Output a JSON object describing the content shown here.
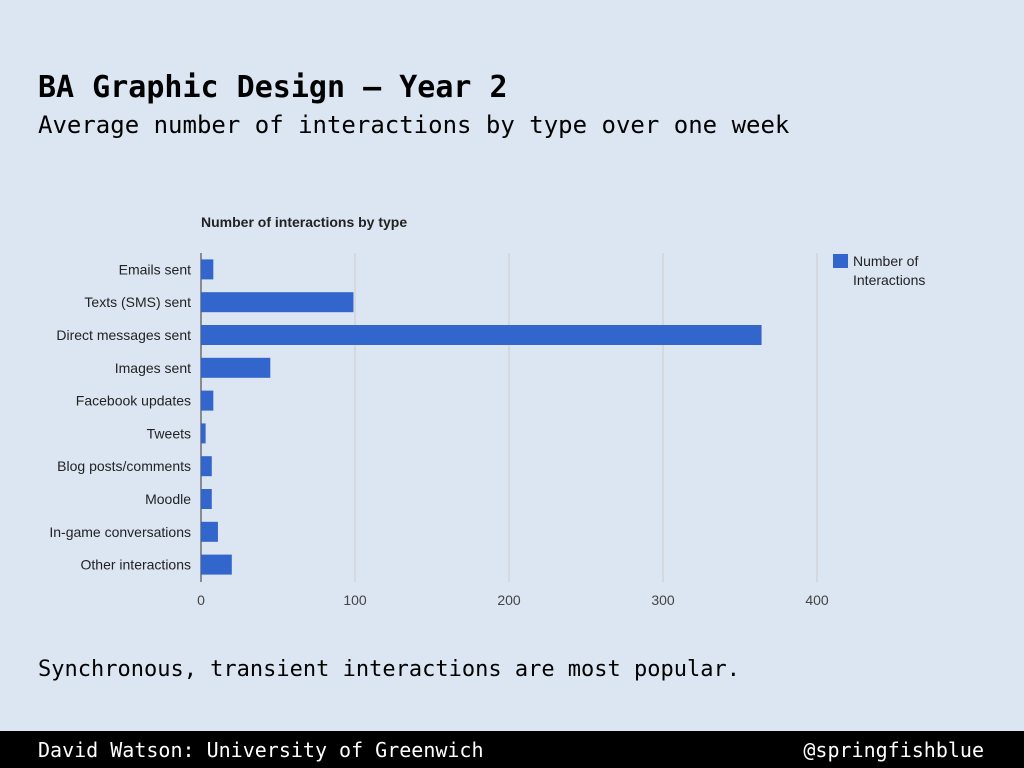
{
  "slide": {
    "title": "BA Graphic Design – Year 2",
    "subtitle": "Average number of interactions by type over one week",
    "conclusion": "Synchronous, transient interactions are most popular."
  },
  "footer": {
    "left": "David Watson: University of Greenwich",
    "right": "@springfishblue"
  },
  "colors": {
    "background": "#dce6f2",
    "bar": "#3366cc",
    "gridline": "#cccccc",
    "footer_bg": "#000000"
  },
  "chart_data": {
    "type": "bar",
    "orientation": "horizontal",
    "title": "Number of interactions by type",
    "categories": [
      "Emails sent",
      "Texts (SMS) sent",
      "Direct messages sent",
      "Images sent",
      "Facebook updates",
      "Tweets",
      "Blog posts/comments",
      "Moodle",
      "In-game conversations",
      "Other interactions"
    ],
    "series": [
      {
        "name": "Number of Interactions",
        "values": [
          8,
          99,
          364,
          45,
          8,
          3,
          7,
          7,
          11,
          20
        ]
      }
    ],
    "xlim": [
      0,
      400
    ],
    "xticks": [
      0,
      100,
      200,
      300,
      400
    ],
    "legend": "top-right",
    "grid": true
  }
}
